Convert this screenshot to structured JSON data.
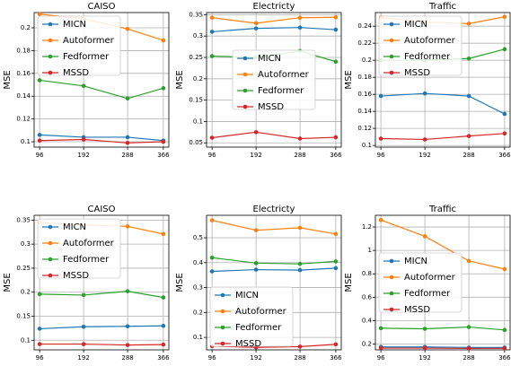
{
  "chart_data": [
    {
      "type": "line",
      "title": "CAISO",
      "y_label": "MSE",
      "legend": "upper left",
      "grid": true,
      "x": [
        96,
        192,
        288,
        366
      ],
      "xlim": [
        84,
        378
      ],
      "xticks": [
        96,
        192,
        288,
        366
      ],
      "ylim": [
        0.0953,
        0.2134
      ],
      "yticks": [
        0.1,
        0.12,
        0.14,
        0.16,
        0.18,
        0.2
      ],
      "series": [
        {
          "name": "MICN",
          "color": "#1f77b4",
          "values": [
            0.106,
            0.104,
            0.104,
            0.101
          ]
        },
        {
          "name": "Autoformer",
          "color": "#ff7f0e",
          "values": [
            0.212,
            0.208,
            0.199,
            0.189
          ]
        },
        {
          "name": "Fedformer",
          "color": "#2ca02c",
          "values": [
            0.154,
            0.149,
            0.138,
            0.147
          ]
        },
        {
          "name": "MSSD",
          "color": "#d62728",
          "values": [
            0.101,
            0.102,
            0.099,
            0.1
          ]
        }
      ]
    },
    {
      "type": "line",
      "title": "Electricty",
      "y_label": "MSE",
      "legend": "center",
      "grid": true,
      "x": [
        96,
        192,
        288,
        366
      ],
      "xlim": [
        84,
        378
      ],
      "xticks": [
        96,
        192,
        288,
        366
      ],
      "ylim": [
        0.04,
        0.355
      ],
      "yticks": [
        0.05,
        0.1,
        0.15,
        0.2,
        0.25,
        0.3,
        0.35
      ],
      "series": [
        {
          "name": "MICN",
          "color": "#1f77b4",
          "values": [
            0.31,
            0.318,
            0.32,
            0.315
          ]
        },
        {
          "name": "Autoformer",
          "color": "#ff7f0e",
          "values": [
            0.343,
            0.33,
            0.343,
            0.344
          ]
        },
        {
          "name": "Fedformer",
          "color": "#2ca02c",
          "values": [
            0.253,
            0.25,
            0.265,
            0.24
          ]
        },
        {
          "name": "MSSD",
          "color": "#d62728",
          "values": [
            0.062,
            0.075,
            0.06,
            0.063
          ]
        }
      ]
    },
    {
      "type": "line",
      "title": "Traffic",
      "y_label": "MSE",
      "legend": "upper left",
      "grid": true,
      "x": [
        96,
        192,
        288,
        366
      ],
      "xlim": [
        84,
        378
      ],
      "xticks": [
        96,
        192,
        288,
        366
      ],
      "ylim": [
        0.098,
        0.256
      ],
      "yticks": [
        0.1,
        0.12,
        0.14,
        0.16,
        0.18,
        0.2,
        0.22,
        0.24
      ],
      "series": [
        {
          "name": "MICN",
          "color": "#1f77b4",
          "values": [
            0.158,
            0.161,
            0.158,
            0.137
          ]
        },
        {
          "name": "Autoformer",
          "color": "#ff7f0e",
          "values": [
            0.25,
            0.245,
            0.243,
            0.251
          ]
        },
        {
          "name": "Fedformer",
          "color": "#2ca02c",
          "values": [
            0.2,
            0.2,
            0.202,
            0.213
          ]
        },
        {
          "name": "MSSD",
          "color": "#d62728",
          "values": [
            0.108,
            0.107,
            0.111,
            0.114
          ]
        }
      ]
    },
    {
      "type": "line",
      "title": "CAISO",
      "y_label": "MSE",
      "legend": "upper left",
      "grid": true,
      "x": [
        96,
        192,
        288,
        366
      ],
      "xlim": [
        84,
        378
      ],
      "xticks": [
        96,
        192,
        288,
        366
      ],
      "ylim": [
        0.08,
        0.36
      ],
      "yticks": [
        0.1,
        0.15,
        0.2,
        0.25,
        0.3,
        0.35
      ],
      "series": [
        {
          "name": "MICN",
          "color": "#1f77b4",
          "values": [
            0.124,
            0.128,
            0.129,
            0.13
          ]
        },
        {
          "name": "Autoformer",
          "color": "#ff7f0e",
          "values": [
            0.345,
            0.34,
            0.337,
            0.321
          ]
        },
        {
          "name": "Fedformer",
          "color": "#2ca02c",
          "values": [
            0.196,
            0.194,
            0.202,
            0.189
          ]
        },
        {
          "name": "MSSD",
          "color": "#d62728",
          "values": [
            0.092,
            0.092,
            0.09,
            0.091
          ]
        }
      ]
    },
    {
      "type": "line",
      "title": "Electricty",
      "y_label": "MSE",
      "legend": "lower left",
      "grid": true,
      "x": [
        96,
        192,
        288,
        366
      ],
      "xlim": [
        84,
        378
      ],
      "xticks": [
        96,
        192,
        288,
        366
      ],
      "ylim": [
        0.05,
        0.59
      ],
      "yticks": [
        0.1,
        0.2,
        0.3,
        0.4,
        0.5
      ],
      "series": [
        {
          "name": "MICN",
          "color": "#1f77b4",
          "values": [
            0.365,
            0.372,
            0.37,
            0.378
          ]
        },
        {
          "name": "Autoformer",
          "color": "#ff7f0e",
          "values": [
            0.57,
            0.53,
            0.54,
            0.515
          ]
        },
        {
          "name": "Fedformer",
          "color": "#2ca02c",
          "values": [
            0.42,
            0.398,
            0.395,
            0.405
          ]
        },
        {
          "name": "MSSD",
          "color": "#d62728",
          "values": [
            0.065,
            0.06,
            0.063,
            0.072
          ]
        }
      ]
    },
    {
      "type": "line",
      "title": "Traffic",
      "y_label": "MSE",
      "legend": "center left",
      "grid": true,
      "x": [
        96,
        192,
        288,
        366
      ],
      "xlim": [
        84,
        378
      ],
      "xticks": [
        96,
        192,
        288,
        366
      ],
      "ylim": [
        0.15,
        1.3
      ],
      "yticks": [
        0.2,
        0.4,
        0.6,
        0.8,
        1.0,
        1.2
      ],
      "series": [
        {
          "name": "MICN",
          "color": "#1f77b4",
          "values": [
            0.175,
            0.175,
            0.17,
            0.17
          ]
        },
        {
          "name": "Autoformer",
          "color": "#ff7f0e",
          "values": [
            1.26,
            1.12,
            0.91,
            0.84
          ]
        },
        {
          "name": "Fedformer",
          "color": "#2ca02c",
          "values": [
            0.335,
            0.33,
            0.345,
            0.32
          ]
        },
        {
          "name": "MSSD",
          "color": "#d62728",
          "values": [
            0.165,
            0.165,
            0.162,
            0.163
          ]
        }
      ]
    }
  ]
}
